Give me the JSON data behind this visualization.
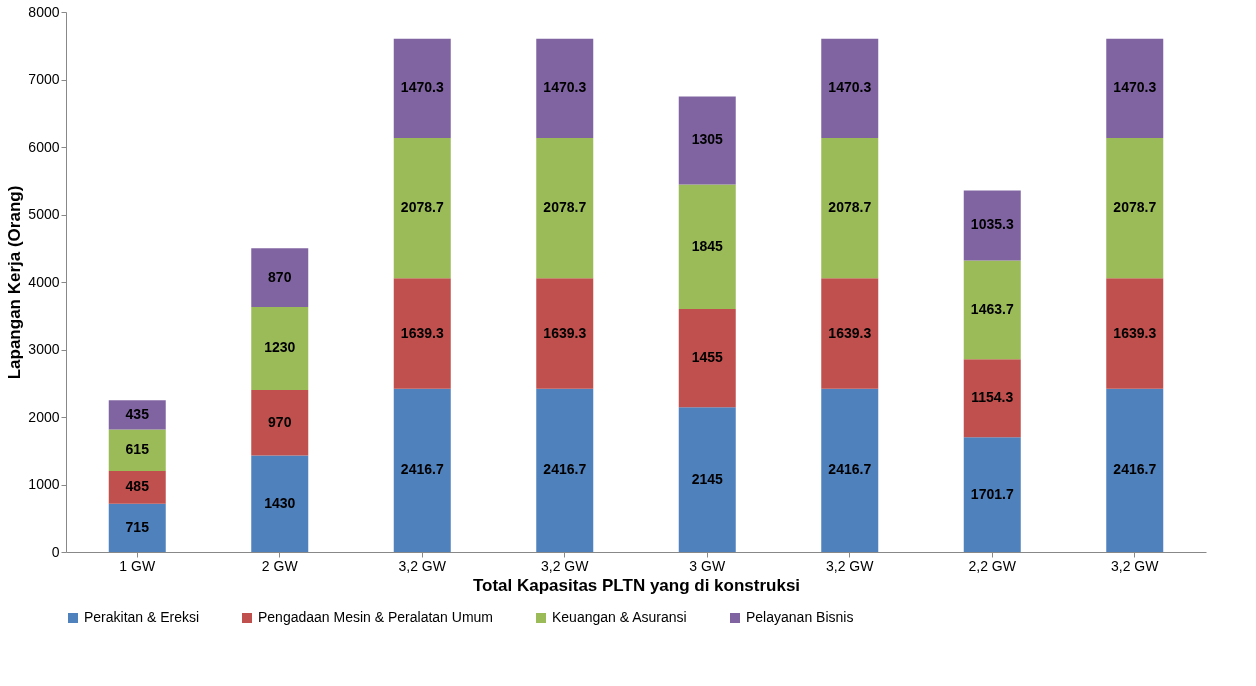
{
  "chart_data": {
    "type": "bar",
    "stacked": true,
    "data_labels": true,
    "grid": false,
    "legend": "bottom",
    "xlabel": "Total Kapasitas PLTN yang di konstruksi",
    "ylabel": "Lapangan Kerja (Orang)",
    "categories": [
      "1 GW",
      "2 GW",
      "3,2 GW",
      "3,2 GW",
      "3 GW",
      "3,2 GW",
      "2,2 GW",
      "3,2 GW"
    ],
    "ylim": [
      0,
      8000
    ],
    "yticks": [
      0,
      1000,
      2000,
      3000,
      4000,
      5000,
      6000,
      7000,
      8000
    ],
    "series": [
      {
        "name": "Perakitan & Ereksi",
        "color": "#4f81bd",
        "values": [
          715,
          1430,
          2416.7,
          2416.7,
          2145,
          2416.7,
          1701.7,
          2416.7
        ]
      },
      {
        "name": "Pengadaan Mesin & Peralatan Umum",
        "color": "#c0504d",
        "values": [
          485,
          970,
          1639.3,
          1639.3,
          1455,
          1639.3,
          1154.3,
          1639.3
        ]
      },
      {
        "name": "Keuangan & Asuransi",
        "color": "#9bbb59",
        "values": [
          615,
          1230,
          2078.7,
          2078.7,
          1845,
          2078.7,
          1463.7,
          2078.7
        ]
      },
      {
        "name": "Pelayanan Bisnis",
        "color": "#8064a2",
        "values": [
          435,
          870,
          1470.3,
          1470.3,
          1305,
          1470.3,
          1035.3,
          1470.3
        ]
      }
    ]
  }
}
